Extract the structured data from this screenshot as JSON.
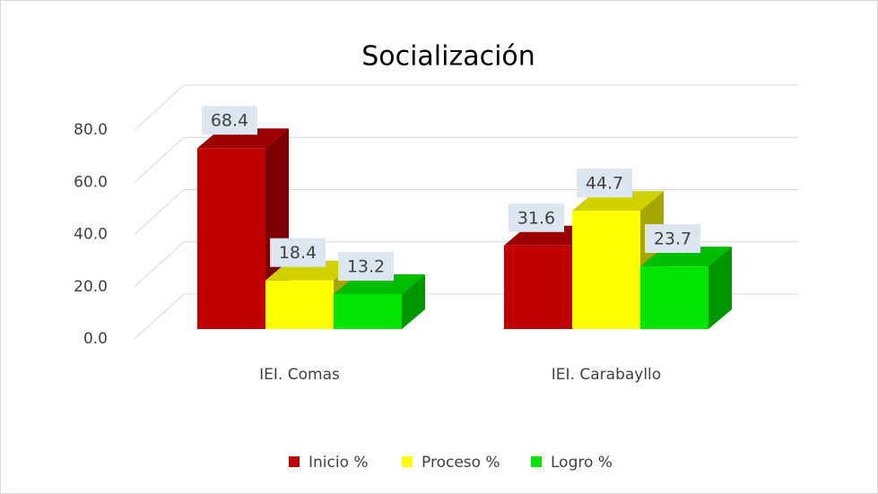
{
  "chart_data": {
    "type": "bar3d",
    "title": "Socialización",
    "categories": [
      "IEI. Comas",
      "IEI. Carabayllo"
    ],
    "series": [
      {
        "name": "Inicio %",
        "color": "#c00000",
        "values": [
          68.4,
          31.6
        ]
      },
      {
        "name": "Proceso %",
        "color": "#ffff00",
        "values": [
          18.4,
          44.7
        ]
      },
      {
        "name": "Logro %",
        "color": "#00e600",
        "values": [
          13.2,
          23.7
        ]
      }
    ],
    "ylim": [
      0,
      80
    ],
    "yticks": [
      {
        "value": 0,
        "label": "0.0"
      },
      {
        "value": 20,
        "label": "20.0"
      },
      {
        "value": 40,
        "label": "40.0"
      },
      {
        "value": 60,
        "label": "60.0"
      },
      {
        "value": 80,
        "label": "80.0"
      }
    ],
    "grid": true,
    "legend": "bottom"
  }
}
